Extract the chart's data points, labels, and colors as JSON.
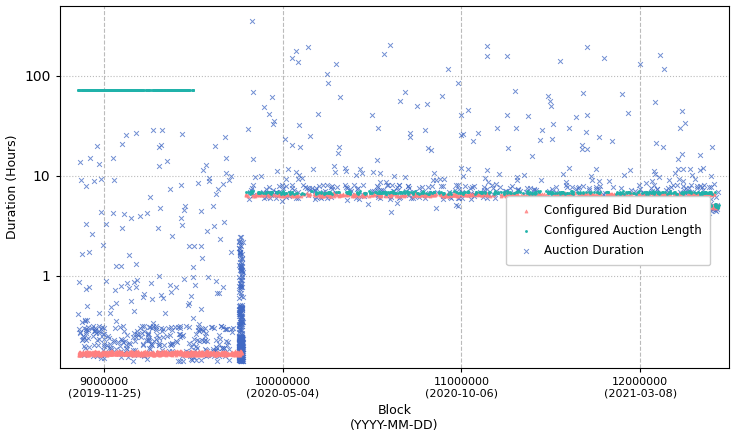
{
  "title": "",
  "xlabel": "Block\n(YYYY-MM-DD)",
  "ylabel": "Duration (Hours)",
  "xlim": [
    8750000,
    12500000
  ],
  "ylim": [
    0.12,
    500
  ],
  "xticks": [
    9000000,
    10000000,
    11000000,
    12000000
  ],
  "xtick_labels": [
    "9000000\n(2019-11-25)",
    "10000000\n(2020-05-04)",
    "11000000\n(2020-10-06)",
    "12000000\n(2021-03-08)"
  ],
  "auction_duration_color": "#4169C4",
  "configured_bid_color": "#FF8080",
  "configured_auction_color": "#20B2AA",
  "legend_entries": [
    "Auction Duration",
    "Configured Bid Duration",
    "Configured Auction Length"
  ],
  "background_color": "#ffffff",
  "grid_color": "#bbbbbb",
  "xlabel_fontsize": 9,
  "ylabel_fontsize": 9,
  "tick_fontsize": 8
}
